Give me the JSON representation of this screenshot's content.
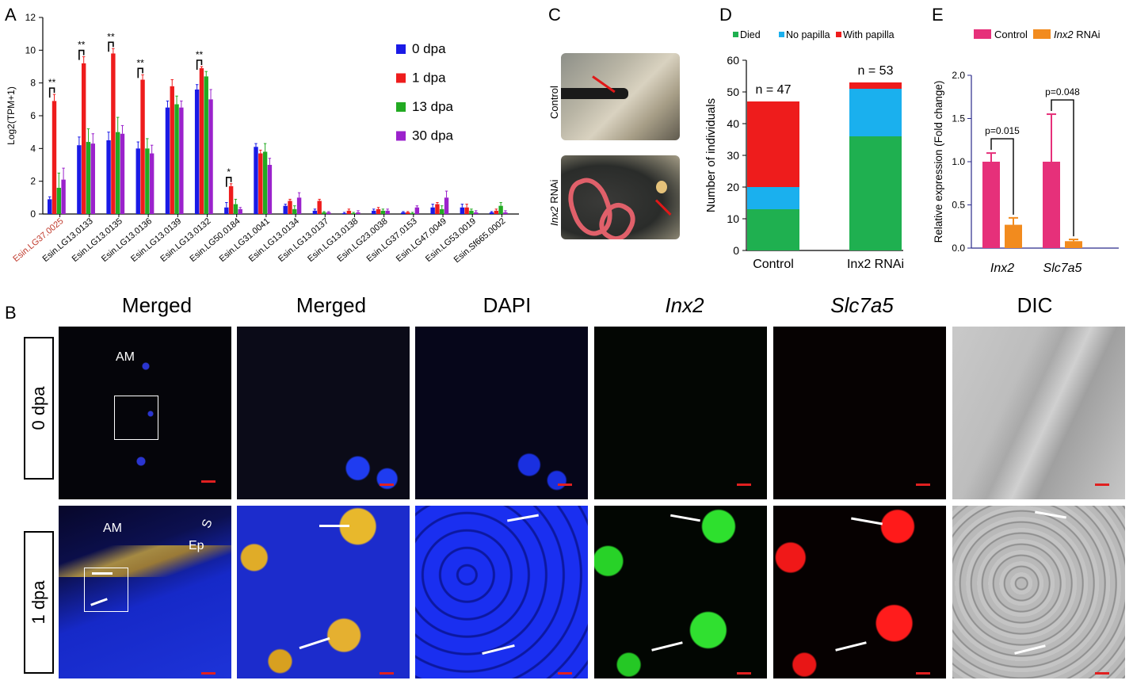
{
  "panel_labels": {
    "a": "A",
    "b": "B",
    "c": "C",
    "d": "D",
    "e": "E"
  },
  "colors": {
    "dpa0": "#1a1ae6",
    "dpa1": "#ee1c1c",
    "dpa13": "#22aa22",
    "dpa30": "#9b22cc",
    "died": "#1fb050",
    "no_papilla": "#1ab0ee",
    "with_papilla": "#ee1c1c",
    "control": "#e6307a",
    "rnai": "#f28b1e"
  },
  "panelA": {
    "sig_marks": [
      "**",
      "**",
      "**",
      "**",
      "**",
      "*"
    ]
  },
  "panelB": {
    "headers": [
      "Merged",
      "Merged",
      "DAPI",
      "Inx2",
      "Slc7a5",
      "DIC"
    ],
    "rows": [
      "0 dpa",
      "1 dpa"
    ],
    "annot": {
      "am1": "AM",
      "am2": "AM",
      "ep": "Ep",
      "s": "S"
    }
  },
  "panelC": {
    "control": "Control",
    "rnai_gene": "Inx2",
    "rnai_suffix": " RNAi"
  },
  "panelD": {
    "n1": "n = 47",
    "n2": "n = 53"
  },
  "panelE": {
    "p1": "p=0.015",
    "p2": "p=0.048",
    "legend_control": "Control",
    "legend_gene": "Inx2",
    "legend_suffix": " RNAi"
  },
  "chart_data": [
    {
      "type": "bar",
      "panel": "A",
      "ylabel": "Log2(TPM+1)",
      "ylim": [
        0,
        12
      ],
      "yticks": [
        0,
        2,
        4,
        6,
        8,
        10,
        12
      ],
      "categories": [
        "Esin.LG37.0025",
        "Esin.LG13.0133",
        "Esin.LG13.0135",
        "Esin.LG13.0136",
        "Esin.LG13.0139",
        "Esin.LG13.0132",
        "Esin.LG50.0184",
        "Esin.LG31.0041",
        "Esin.LG13.0134",
        "Esin.LG13.0137",
        "Esin.LG13.0138",
        "Esin.LG23.0038",
        "Esin.LG37.0153",
        "Esin.LG47.0049",
        "Esin.LG53.0019",
        "Esin.Sf665.0002"
      ],
      "series": [
        {
          "name": "0 dpa",
          "values": [
            0.9,
            4.2,
            4.5,
            4.0,
            6.5,
            7.6,
            0.4,
            4.1,
            0.5,
            0.2,
            0.05,
            0.2,
            0.1,
            0.4,
            0.4,
            0.1
          ]
        },
        {
          "name": "1 dpa",
          "values": [
            6.9,
            9.2,
            9.8,
            8.2,
            7.8,
            8.9,
            1.7,
            3.7,
            0.8,
            0.8,
            0.2,
            0.3,
            0.1,
            0.6,
            0.4,
            0.2
          ]
        },
        {
          "name": "13 dpa",
          "values": [
            1.6,
            4.4,
            5.0,
            4.0,
            6.7,
            8.4,
            0.6,
            3.8,
            0.3,
            0.1,
            0.05,
            0.2,
            0.05,
            0.3,
            0.2,
            0.5
          ]
        },
        {
          "name": "30 dpa",
          "values": [
            2.1,
            4.3,
            4.9,
            3.7,
            6.5,
            7.0,
            0.3,
            3.0,
            1.0,
            0.1,
            0.1,
            0.2,
            0.4,
            1.0,
            0.1,
            0.1
          ]
        }
      ],
      "errors": [
        [
          0.15,
          0.5,
          0.5,
          0.4,
          0.4,
          0.3,
          0.3,
          0.2,
          0.1,
          0.1,
          0.05,
          0.1,
          0.05,
          0.2,
          0.2,
          0.05
        ],
        [
          0.4,
          0.4,
          0.3,
          0.3,
          0.4,
          0.1,
          0.15,
          0.2,
          0.1,
          0.1,
          0.1,
          0.1,
          0.05,
          0.1,
          0.2,
          0.1
        ],
        [
          0.9,
          0.8,
          0.9,
          0.6,
          0.5,
          0.3,
          0.3,
          0.5,
          0.2,
          0.05,
          0.05,
          0.1,
          0.05,
          0.2,
          0.1,
          0.2
        ],
        [
          0.7,
          0.6,
          0.5,
          0.5,
          0.4,
          0.6,
          0.1,
          0.4,
          0.3,
          0.05,
          0.1,
          0.1,
          0.1,
          0.4,
          0.1,
          0.1
        ]
      ],
      "legend": "right"
    },
    {
      "type": "bar",
      "panel": "D",
      "stacked": true,
      "ylabel": "Number of individuals",
      "ylim": [
        0,
        60
      ],
      "yticks": [
        0,
        10,
        20,
        30,
        40,
        50,
        60
      ],
      "categories": [
        "Control",
        "Inx2 RNAi"
      ],
      "series": [
        {
          "name": "Died",
          "values": [
            13,
            36
          ]
        },
        {
          "name": "No papilla",
          "values": [
            7,
            15
          ]
        },
        {
          "name": "With papilla",
          "values": [
            27,
            2
          ]
        }
      ],
      "legend": "top"
    },
    {
      "type": "bar",
      "panel": "E",
      "ylabel": "Relative expression (Fold change)",
      "ylim": [
        0,
        2.0
      ],
      "yticks": [
        "0.0",
        "0.5",
        "1.0",
        "1.5",
        "2.0"
      ],
      "categories": [
        "Inx2",
        "Slc7a5"
      ],
      "series": [
        {
          "name": "Control",
          "values": [
            1.0,
            1.0
          ],
          "errors": [
            0.1,
            0.55
          ]
        },
        {
          "name": "Inx2 RNAi",
          "values": [
            0.27,
            0.08
          ],
          "errors": [
            0.08,
            0.02
          ]
        }
      ],
      "legend": "top"
    }
  ]
}
